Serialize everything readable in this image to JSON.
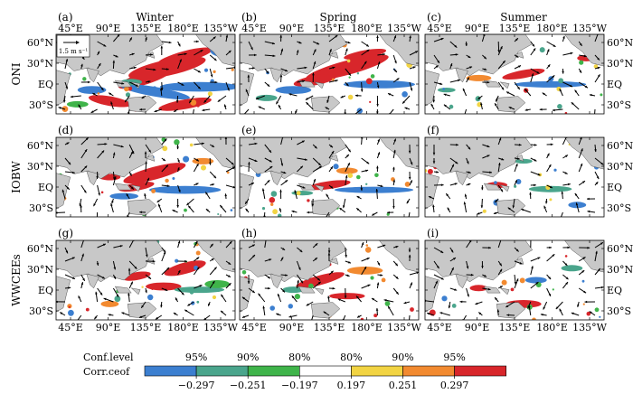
{
  "figure": {
    "columns": [
      "Winter",
      "Spring",
      "Summer"
    ],
    "rows": [
      "ONI",
      "IOBW",
      "WWCEEs"
    ],
    "panel_letters": [
      "(a)",
      "(b)",
      "(c)",
      "(d)",
      "(e)",
      "(f)",
      "(g)",
      "(h)",
      "(i)"
    ],
    "lon_labels": [
      "45°E",
      "90°E",
      "135°E",
      "180°E",
      "135°W"
    ],
    "lat_labels": [
      "60°N",
      "30°N",
      "EQ",
      "30°S"
    ],
    "scale_vector_label": "1.5 m s⁻¹",
    "colors": {
      "land": "#c8c8c8",
      "neg_strong": "#3c7fd0",
      "neg_mid": "#4aa58c",
      "neg_weak": "#3fb44a",
      "pos_weak": "#f2d443",
      "pos_mid": "#f28a30",
      "pos_strong": "#d8262b"
    }
  },
  "colorbar": {
    "conf_label": "Conf.level",
    "corr_label": "Corr.ceof",
    "conf_levels": [
      "95%",
      "90%",
      "80%",
      "80%",
      "90%",
      "95%"
    ],
    "ticks": [
      "−0.297",
      "−0.251",
      "−0.197",
      "0.197",
      "0.251",
      "0.297"
    ],
    "segment_colors": [
      "#3c7fd0",
      "#4aa58c",
      "#3fb44a",
      "#ffffff",
      "#f2d443",
      "#f28a30",
      "#d8262b"
    ]
  }
}
